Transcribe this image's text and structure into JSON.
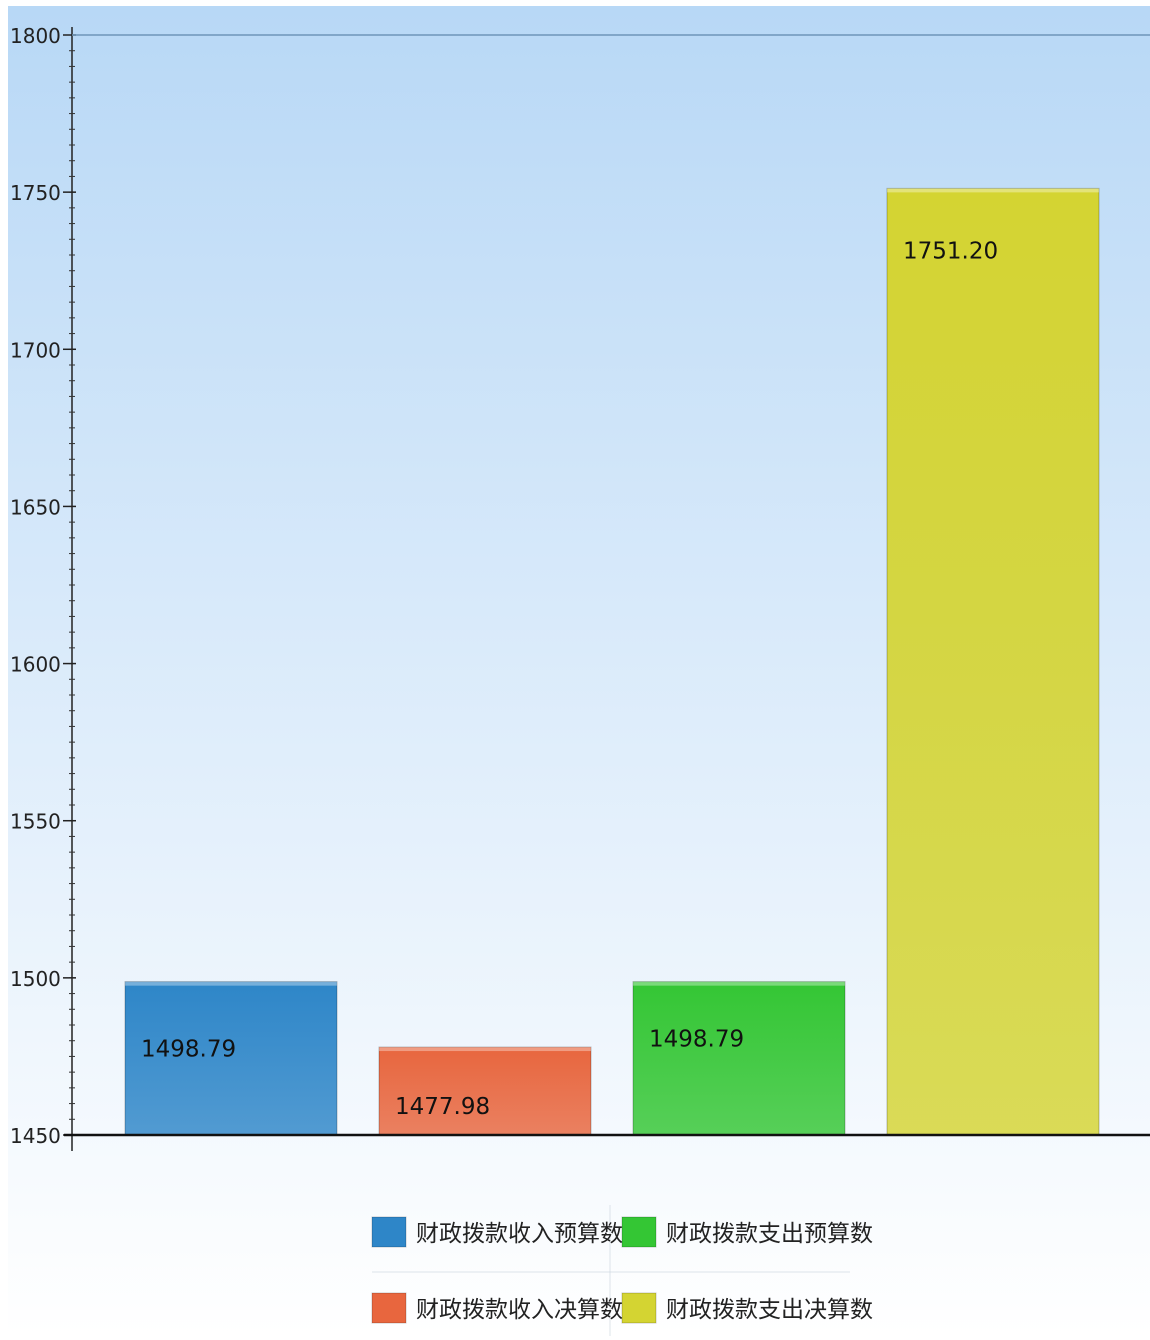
{
  "chart_data": {
    "type": "bar",
    "title": "",
    "xlabel": "",
    "ylabel": "",
    "ylim": [
      1450,
      1800
    ],
    "y_ticks": [
      "1800",
      "1750",
      "1700",
      "1650",
      "1600",
      "1550",
      "1500",
      "1450"
    ],
    "categories": [
      "财政拨款收入预算数",
      "财政拨款收入决算数",
      "财政拨款支出预算数",
      "财政拨款支出决算数"
    ],
    "values": [
      1498.79,
      1477.98,
      1498.79,
      1751.2
    ],
    "data_labels": [
      "1498.79",
      "1477.98",
      "1498.79",
      "1751.20"
    ],
    "colors": [
      "#2e86c8",
      "#e8663e",
      "#34c634",
      "#d4d432"
    ],
    "grid": false,
    "legend": {
      "placement": "bottom-center",
      "entries": [
        "财政拨款收入预算数",
        "财政拨款支出预算数",
        "财政拨款收入决算数",
        "财政拨款支出决算数"
      ],
      "colors": [
        "#2e86c8",
        "#34c634",
        "#e8663e",
        "#d4d432"
      ]
    }
  }
}
